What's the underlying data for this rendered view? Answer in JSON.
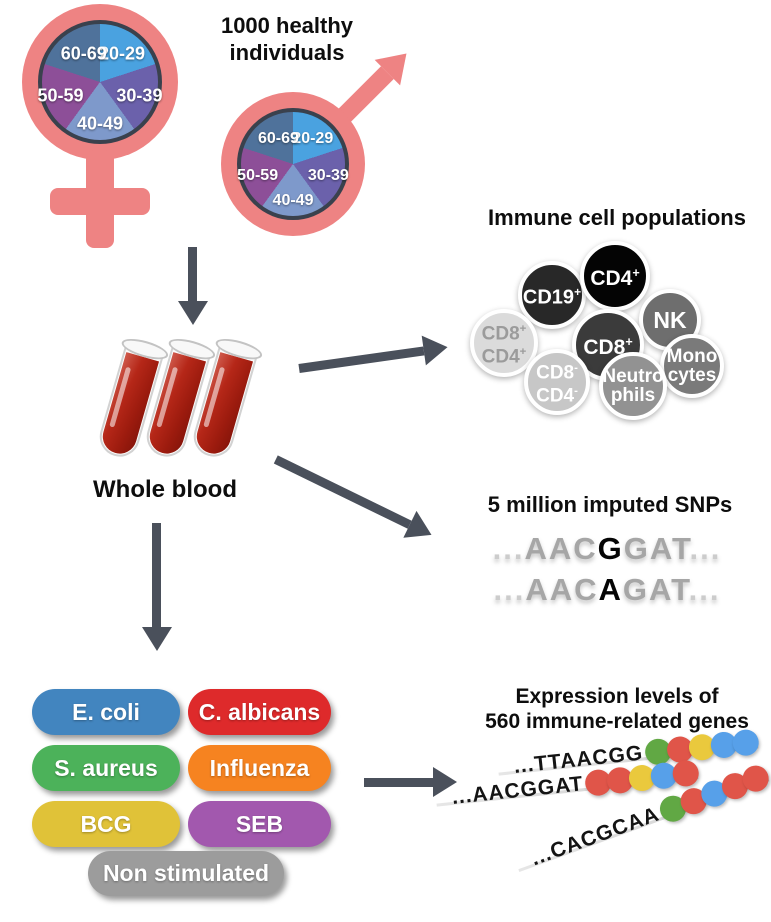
{
  "colors": {
    "arrow": "#4a505b",
    "symbol": "#ee8383",
    "pie_border": "#3a414d"
  },
  "cohort": {
    "heading": "1000 healthy\nindividuals",
    "age_groups": [
      {
        "label": "20-29",
        "color": "#4aa2e0"
      },
      {
        "label": "30-39",
        "color": "#6b61ab"
      },
      {
        "label": "40-49",
        "color": "#7e99cb"
      },
      {
        "label": "50-59",
        "color": "#8d4f98"
      },
      {
        "label": "60-69",
        "color": "#4f729b"
      }
    ]
  },
  "blood": {
    "label": "Whole blood"
  },
  "immune_cells": {
    "heading": "Immune cell populations",
    "cells": [
      {
        "line1": "CD19",
        "sup1": "+",
        "bg": "#282828",
        "fg": "#ffffff"
      },
      {
        "line1": "CD4",
        "sup1": "+",
        "bg": "#040404",
        "fg": "#ffffff"
      },
      {
        "line1": "NK",
        "bg": "#6e6e6e",
        "fg": "#ffffff"
      },
      {
        "line1": "CD8",
        "sup1": "+",
        "bg": "#3b3b3b",
        "fg": "#ffffff"
      },
      {
        "line1": "CD8",
        "sup1": "+",
        "line2": "CD4",
        "sup2": "+",
        "bg": "#dbdbdb",
        "fg": "#9b9b9b"
      },
      {
        "line1": "Mono",
        "line2": "cytes",
        "bg": "#7a7a7a",
        "fg": "#ffffff"
      },
      {
        "line1": "CD8",
        "sup1": "-",
        "line2": "CD4",
        "sup2": "-",
        "bg": "#c7c7c7",
        "fg": "#ffffff"
      },
      {
        "line1": "Neutro",
        "line2": "phils",
        "bg": "#929292",
        "fg": "#ffffff"
      }
    ]
  },
  "snps": {
    "heading": "5 million imputed SNPs",
    "sequences": [
      {
        "pre": "...",
        "left": "AAC",
        "variant": "G",
        "right": "GAT",
        "post": "..."
      },
      {
        "pre": "...",
        "left": "AAC",
        "variant": "A",
        "right": "GAT",
        "post": "..."
      }
    ]
  },
  "stimuli": {
    "items": [
      {
        "label": "E. coli",
        "color": "#4285bf"
      },
      {
        "label": "C. albicans",
        "color": "#de2a2b"
      },
      {
        "label": "S. aureus",
        "color": "#4cb25a"
      },
      {
        "label": "Influenza",
        "color": "#f68320"
      },
      {
        "label": "BCG",
        "color": "#e0c238"
      },
      {
        "label": "SEB",
        "color": "#a258ae"
      },
      {
        "label": "Non stimulated",
        "color": "#9c9c9c"
      }
    ]
  },
  "expression": {
    "heading_line1": "Expression levels of",
    "heading_line2": "560 immune-related genes",
    "rows": [
      {
        "sequence": "...TTAACGG",
        "dots": [
          "#61a844",
          "#e05549",
          "#eac93d",
          "#57a0e9",
          "#57a0e9"
        ]
      },
      {
        "sequence": "...AACGGAT",
        "dots": [
          "#e05549",
          "#e05549",
          "#eac93d",
          "#57a0e9",
          "#e05549"
        ]
      },
      {
        "sequence": "...CACGCAA",
        "dots": [
          "#61a844",
          "#e05549",
          "#57a0e9",
          "#e05549",
          "#e05549"
        ]
      }
    ]
  }
}
